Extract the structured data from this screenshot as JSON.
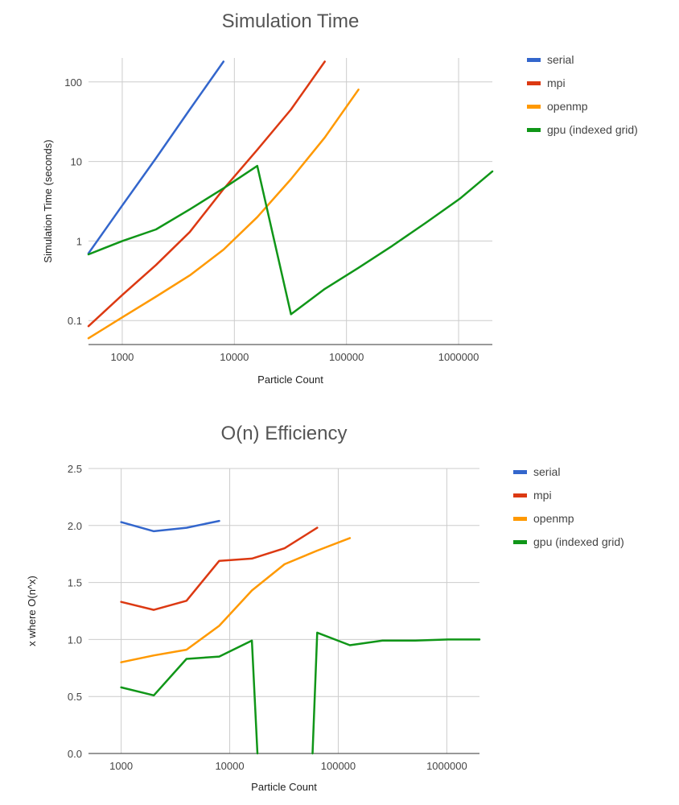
{
  "colors": {
    "serial": "#3366cc",
    "mpi": "#dc3912",
    "openmp": "#ff9900",
    "gpu": "#109618"
  },
  "chart_data": [
    {
      "type": "line",
      "title": "Simulation Time",
      "xlabel": "Particle Count",
      "ylabel": "Simulation Time (seconds)",
      "x_scale": "log",
      "y_scale": "log",
      "xlim": [
        500,
        2000000
      ],
      "ylim": [
        0.05,
        200
      ],
      "x_ticks": [
        1000,
        10000,
        100000,
        1000000
      ],
      "x_tick_labels": [
        "1000",
        "10000",
        "100000",
        "1000000"
      ],
      "y_ticks": [
        0.1,
        1,
        10,
        100
      ],
      "y_tick_labels": [
        "0.1",
        "1",
        "10",
        "100"
      ],
      "grid": true,
      "legend_position": "right",
      "series": [
        {
          "name": "serial",
          "color": "#3366cc",
          "x": [
            500,
            1000,
            2000,
            4000,
            8000
          ],
          "y": [
            0.7,
            2.8,
            11,
            45,
            180
          ]
        },
        {
          "name": "mpi",
          "color": "#dc3912",
          "x": [
            500,
            1000,
            2000,
            4000,
            8000,
            16000,
            32000,
            64000
          ],
          "y": [
            0.085,
            0.21,
            0.5,
            1.3,
            4.5,
            14,
            45,
            180
          ]
        },
        {
          "name": "openmp",
          "color": "#ff9900",
          "x": [
            500,
            1000,
            2000,
            4000,
            8000,
            16000,
            32000,
            64000,
            128000
          ],
          "y": [
            0.06,
            0.11,
            0.2,
            0.37,
            0.78,
            2,
            6,
            20,
            80
          ]
        },
        {
          "name": "gpu (indexed grid)",
          "color": "#109618",
          "x": [
            500,
            1000,
            2000,
            4000,
            8000,
            16000,
            32000,
            64000,
            128000,
            256000,
            512000,
            1024000,
            2000000
          ],
          "y": [
            0.68,
            1,
            1.4,
            2.5,
            4.6,
            8.8,
            0.12,
            0.25,
            0.46,
            0.87,
            1.7,
            3.4,
            7.5
          ]
        }
      ]
    },
    {
      "type": "line",
      "title": "O(n) Efficiency",
      "xlabel": "Particle Count",
      "ylabel": "x where O(n^x)",
      "x_scale": "log",
      "y_scale": "linear",
      "xlim": [
        500,
        2000000
      ],
      "ylim": [
        0,
        2.5
      ],
      "x_ticks": [
        1000,
        10000,
        100000,
        1000000
      ],
      "x_tick_labels": [
        "1000",
        "10000",
        "100000",
        "1000000"
      ],
      "y_ticks": [
        0,
        0.5,
        1,
        1.5,
        2,
        2.5
      ],
      "y_tick_labels": [
        "0.0",
        "0.5",
        "1.0",
        "1.5",
        "2.0",
        "2.5"
      ],
      "grid": true,
      "legend_position": "right",
      "series": [
        {
          "name": "serial",
          "color": "#3366cc",
          "x": [
            1000,
            2000,
            4000,
            8000
          ],
          "y": [
            2.03,
            1.95,
            1.98,
            2.04
          ]
        },
        {
          "name": "mpi",
          "color": "#dc3912",
          "x": [
            1000,
            2000,
            4000,
            8000,
            16000,
            32000,
            64000
          ],
          "y": [
            1.33,
            1.26,
            1.34,
            1.69,
            1.71,
            1.8,
            1.98
          ]
        },
        {
          "name": "openmp",
          "color": "#ff9900",
          "x": [
            1000,
            2000,
            4000,
            8000,
            16000,
            32000,
            64000,
            128000
          ],
          "y": [
            0.8,
            0.86,
            0.91,
            1.12,
            1.43,
            1.66,
            1.78,
            1.89
          ]
        },
        {
          "name": "gpu (indexed grid)",
          "color": "#109618",
          "x": [
            1000,
            2000,
            4000,
            8000,
            16000,
            18000,
            null,
            58000,
            64000,
            128000,
            256000,
            512000,
            1024000,
            2000000
          ],
          "y": [
            0.58,
            0.51,
            0.83,
            0.85,
            0.99,
            0,
            null,
            0,
            1.06,
            0.95,
            0.99,
            0.99,
            1.0,
            1.0
          ]
        }
      ]
    }
  ]
}
